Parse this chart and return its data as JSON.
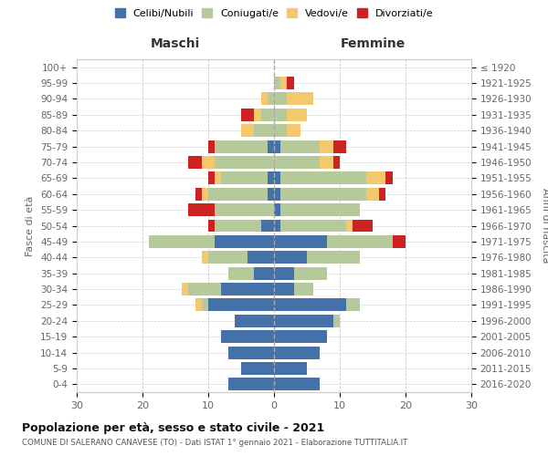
{
  "age_groups": [
    "100+",
    "95-99",
    "90-94",
    "85-89",
    "80-84",
    "75-79",
    "70-74",
    "65-69",
    "60-64",
    "55-59",
    "50-54",
    "45-49",
    "40-44",
    "35-39",
    "30-34",
    "25-29",
    "20-24",
    "15-19",
    "10-14",
    "5-9",
    "0-4"
  ],
  "birth_years": [
    "≤ 1920",
    "1921-1925",
    "1926-1930",
    "1931-1935",
    "1936-1940",
    "1941-1945",
    "1946-1950",
    "1951-1955",
    "1956-1960",
    "1961-1965",
    "1966-1970",
    "1971-1975",
    "1976-1980",
    "1981-1985",
    "1986-1990",
    "1991-1995",
    "1996-2000",
    "2001-2005",
    "2006-2010",
    "2011-2015",
    "2016-2020"
  ],
  "males": {
    "celibi": [
      0,
      0,
      0,
      0,
      0,
      1,
      0,
      1,
      1,
      0,
      2,
      9,
      4,
      3,
      8,
      10,
      6,
      8,
      7,
      5,
      7
    ],
    "coniugati": [
      0,
      0,
      1,
      2,
      3,
      8,
      9,
      7,
      9,
      9,
      7,
      10,
      6,
      4,
      5,
      1,
      0,
      0,
      0,
      0,
      0
    ],
    "vedovi": [
      0,
      0,
      1,
      1,
      2,
      0,
      2,
      1,
      1,
      0,
      0,
      0,
      1,
      0,
      1,
      1,
      0,
      0,
      0,
      0,
      0
    ],
    "divorziati": [
      0,
      0,
      0,
      2,
      0,
      1,
      2,
      1,
      1,
      4,
      1,
      0,
      0,
      0,
      0,
      0,
      0,
      0,
      0,
      0,
      0
    ]
  },
  "females": {
    "nubili": [
      0,
      0,
      0,
      0,
      0,
      1,
      0,
      1,
      1,
      1,
      1,
      8,
      5,
      3,
      3,
      11,
      9,
      8,
      7,
      5,
      7
    ],
    "coniugate": [
      0,
      1,
      2,
      2,
      2,
      6,
      7,
      13,
      13,
      12,
      10,
      10,
      8,
      5,
      3,
      2,
      1,
      0,
      0,
      0,
      0
    ],
    "vedove": [
      0,
      1,
      4,
      3,
      2,
      2,
      2,
      3,
      2,
      0,
      1,
      0,
      0,
      0,
      0,
      0,
      0,
      0,
      0,
      0,
      0
    ],
    "divorziate": [
      0,
      1,
      0,
      0,
      0,
      2,
      1,
      1,
      1,
      0,
      3,
      2,
      0,
      0,
      0,
      0,
      0,
      0,
      0,
      0,
      0
    ]
  },
  "colors": {
    "celibi": "#4472a8",
    "coniugati": "#b5c99a",
    "vedovi": "#f4c96e",
    "divorziati": "#cc2222"
  },
  "xlim": 30,
  "title": "Popolazione per età, sesso e stato civile - 2021",
  "subtitle": "COMUNE DI SALERANO CANAVESE (TO) - Dati ISTAT 1° gennaio 2021 - Elaborazione TUTTITALIA.IT",
  "xlabel_left": "Maschi",
  "xlabel_right": "Femmine",
  "ylabel_left": "Fasce di età",
  "ylabel_right": "Anni di nascita",
  "legend_labels": [
    "Celibi/Nubili",
    "Coniugati/e",
    "Vedovi/e",
    "Divorziati/e"
  ],
  "bg_color": "#ffffff",
  "grid_color": "#cccccc"
}
